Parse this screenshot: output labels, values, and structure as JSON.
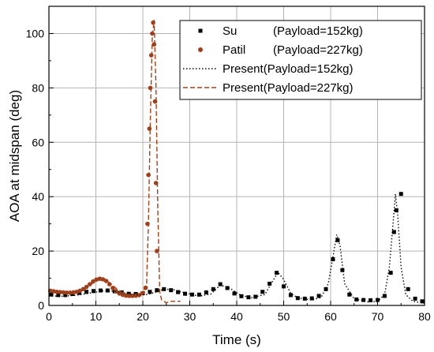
{
  "chart_data": {
    "type": "line",
    "xlabel": "Time (s)",
    "ylabel": "AOA at midspan (deg)",
    "xlim": [
      0,
      80
    ],
    "ylim": [
      0,
      110
    ],
    "xticks": [
      0,
      10,
      20,
      30,
      40,
      50,
      60,
      70,
      80
    ],
    "yticks": [
      0,
      20,
      40,
      60,
      80,
      100
    ],
    "grid": true,
    "legend_position": "top-right",
    "legend": [
      {
        "label": "Su",
        "note": "(Payload=152kg)"
      },
      {
        "label": "Patil",
        "note": "(Payload=227kg)"
      },
      {
        "label": "Present(Payload=152kg)",
        "note": ""
      },
      {
        "label": "Present(Payload=227kg)",
        "note": ""
      }
    ],
    "series": [
      {
        "name": "Su",
        "style": "square-markers",
        "color": "#000000",
        "x": [
          0.5,
          2,
          3.5,
          5,
          6.5,
          8,
          9.5,
          11,
          12.5,
          14,
          15.5,
          17,
          18.5,
          20,
          21.5,
          23,
          24.5,
          26,
          27.5,
          29,
          30.5,
          32,
          33.5,
          35,
          36.5,
          38,
          39.5,
          41,
          42.5,
          44,
          45.5,
          47,
          48.5,
          50,
          51.5,
          53,
          54.5,
          56,
          57.5,
          59,
          60.5,
          61.5,
          62.5,
          64,
          65.5,
          67,
          68.5,
          70,
          71.5,
          72.8,
          73.5,
          74,
          75,
          76.5,
          78,
          79.5
        ],
        "y": [
          4,
          3.8,
          3.8,
          4.2,
          4.6,
          5,
          5.3,
          5.5,
          5.5,
          5.2,
          4.8,
          4.3,
          4.2,
          4.5,
          5,
          5.6,
          6,
          5.6,
          4.9,
          4.3,
          4,
          4,
          4.8,
          6,
          7.8,
          6.4,
          4.4,
          3.4,
          3,
          3.2,
          5,
          8,
          12,
          7,
          3.8,
          2.7,
          2.5,
          2.6,
          3.5,
          6,
          17,
          24,
          13,
          4,
          2.2,
          2,
          1.9,
          2,
          3.5,
          12,
          27,
          35,
          41,
          6,
          2.5,
          1.5
        ]
      },
      {
        "name": "Patil",
        "style": "circle-markers",
        "color": "#a0401a",
        "x": [
          0.3,
          1,
          1.7,
          2.4,
          3.1,
          3.8,
          4.5,
          5.2,
          5.9,
          6.6,
          7.3,
          8,
          8.7,
          9.4,
          10.1,
          10.8,
          11.5,
          12.2,
          12.9,
          13.6,
          14.3,
          15,
          15.7,
          16.4,
          17.1,
          17.8,
          18.5,
          19.2,
          19.9,
          20.6,
          21.0,
          21.2,
          21.4,
          21.6,
          21.8,
          22.0,
          22.2,
          22.4,
          22.6,
          22.8,
          23.0
        ],
        "y": [
          5.4,
          5.2,
          5.0,
          4.9,
          4.8,
          4.7,
          4.7,
          4.8,
          5.0,
          5.4,
          6.0,
          6.8,
          7.8,
          8.8,
          9.5,
          9.8,
          9.6,
          9.0,
          7.8,
          6.4,
          5.2,
          4.4,
          3.9,
          3.6,
          3.5,
          3.5,
          3.6,
          3.8,
          4.5,
          6.5,
          30,
          48,
          65,
          80,
          92,
          100,
          104,
          96,
          75,
          45,
          20
        ]
      },
      {
        "name": "Present(Payload=152kg)",
        "style": "dotted-line",
        "color": "#000000",
        "x": [
          0,
          3,
          6,
          9,
          11.5,
          14,
          17,
          19,
          21,
          23,
          24.5,
          26.5,
          29,
          32,
          34.5,
          36.5,
          38.5,
          40.5,
          43,
          46,
          47.5,
          48.8,
          50,
          51.5,
          53,
          56,
          58,
          59.5,
          60.5,
          61.3,
          62,
          63,
          65,
          68,
          70,
          71.5,
          72.5,
          73.3,
          73.8,
          74.3,
          75,
          76,
          77.5,
          80
        ],
        "y": [
          3.5,
          3.4,
          3.8,
          4.6,
          5.4,
          5.2,
          4.3,
          3.8,
          4,
          5,
          6,
          5.8,
          4.6,
          3.4,
          4.2,
          7.5,
          6.4,
          4,
          2.8,
          4,
          8.5,
          12.2,
          9.5,
          4.5,
          2.8,
          2,
          3,
          8,
          18,
          26,
          22,
          8,
          2.4,
          1.3,
          1.5,
          4,
          14,
          30,
          41,
          33,
          14,
          4,
          1.5,
          0.8
        ]
      },
      {
        "name": "Present(Payload=227kg)",
        "style": "dashed-line",
        "color": "#a0401a",
        "x": [
          0,
          2,
          4,
          6,
          8,
          9.5,
          11,
          12,
          13,
          14.5,
          16,
          17.5,
          19,
          20,
          20.8,
          21.2,
          21.6,
          22,
          22.4,
          22.8,
          23.2,
          23.6,
          24,
          25,
          26,
          28
        ],
        "y": [
          5.3,
          4.9,
          4.7,
          4.8,
          6.3,
          8.4,
          9.8,
          9.6,
          8.2,
          6.0,
          4.3,
          3.7,
          3.8,
          4.6,
          8,
          30,
          68,
          98,
          105,
          80,
          35,
          5,
          2,
          1,
          1.5,
          1.5
        ]
      }
    ]
  }
}
